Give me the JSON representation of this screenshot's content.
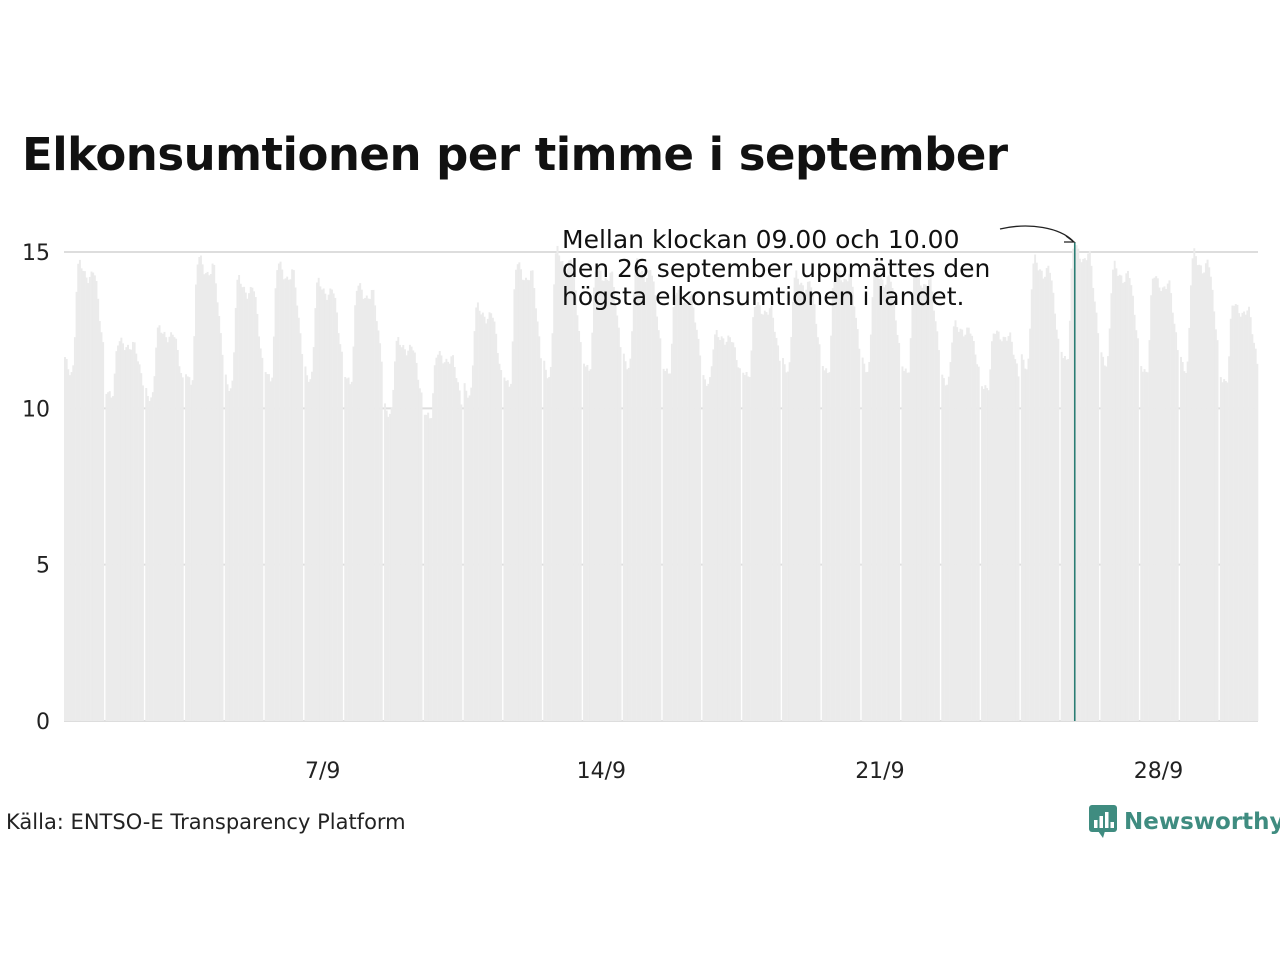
{
  "title": "Elkonsumtionen per timme i september",
  "source": "Källa: ENTSO-E Transparency Platform",
  "brand": {
    "name": "Newsworthy",
    "color": "#3f8c80",
    "logo_icon": "bar-chart-speech-bubble-icon"
  },
  "colors": {
    "bars": "#ebebeb",
    "highlight": "#2a7d73",
    "grid": "#dddddd"
  },
  "annotation": {
    "lines": [
      "Mellan klockan 09.00 och 10.00",
      "den 26 september uppmättes den",
      "högsta elkonsumtionen i landet."
    ],
    "day": 26,
    "hour": 9
  },
  "chart_data": {
    "type": "bar",
    "title": "Elkonsumtionen per timme i september",
    "xlabel": "",
    "ylabel": "",
    "x_unit": "hour of September",
    "ylim": [
      0,
      15
    ],
    "yticks": [
      0,
      5,
      10,
      15
    ],
    "xticks": [
      {
        "day": 7,
        "label": "7/9"
      },
      {
        "day": 14,
        "label": "14/9"
      },
      {
        "day": 21,
        "label": "21/9"
      },
      {
        "day": 28,
        "label": "28/9"
      }
    ],
    "grid": true,
    "legend": "none",
    "days": 30,
    "hours_per_day": 24,
    "highlight": {
      "day": 26,
      "hour": 9,
      "value": 15.3
    },
    "daily_profile": [
      {
        "day": 1,
        "min": 11.1,
        "max": 14.7
      },
      {
        "day": 2,
        "min": 10.4,
        "max": 12.2
      },
      {
        "day": 3,
        "min": 10.3,
        "max": 12.6
      },
      {
        "day": 4,
        "min": 10.8,
        "max": 14.9
      },
      {
        "day": 5,
        "min": 10.6,
        "max": 14.2
      },
      {
        "day": 6,
        "min": 10.9,
        "max": 14.7
      },
      {
        "day": 7,
        "min": 10.9,
        "max": 14.1
      },
      {
        "day": 8,
        "min": 10.8,
        "max": 14.0
      },
      {
        "day": 9,
        "min": 9.8,
        "max": 12.2
      },
      {
        "day": 10,
        "min": 9.7,
        "max": 11.8
      },
      {
        "day": 11,
        "min": 10.4,
        "max": 13.3
      },
      {
        "day": 12,
        "min": 10.7,
        "max": 14.7
      },
      {
        "day": 13,
        "min": 11.0,
        "max": 15.1
      },
      {
        "day": 14,
        "min": 11.2,
        "max": 14.6
      },
      {
        "day": 15,
        "min": 11.3,
        "max": 14.7
      },
      {
        "day": 16,
        "min": 11.1,
        "max": 13.8
      },
      {
        "day": 17,
        "min": 10.8,
        "max": 12.4
      },
      {
        "day": 18,
        "min": 11.0,
        "max": 13.4
      },
      {
        "day": 19,
        "min": 11.2,
        "max": 14.3
      },
      {
        "day": 20,
        "min": 11.1,
        "max": 14.6
      },
      {
        "day": 21,
        "min": 11.2,
        "max": 14.5
      },
      {
        "day": 22,
        "min": 11.1,
        "max": 14.4
      },
      {
        "day": 23,
        "min": 10.8,
        "max": 12.7
      },
      {
        "day": 24,
        "min": 10.6,
        "max": 12.5
      },
      {
        "day": 25,
        "min": 11.3,
        "max": 14.8
      },
      {
        "day": 26,
        "min": 11.5,
        "max": 15.3
      },
      {
        "day": 27,
        "min": 11.4,
        "max": 14.6
      },
      {
        "day": 28,
        "min": 11.1,
        "max": 14.3
      },
      {
        "day": 29,
        "min": 11.2,
        "max": 15.0
      },
      {
        "day": 30,
        "min": 10.8,
        "max": 13.4
      }
    ]
  }
}
